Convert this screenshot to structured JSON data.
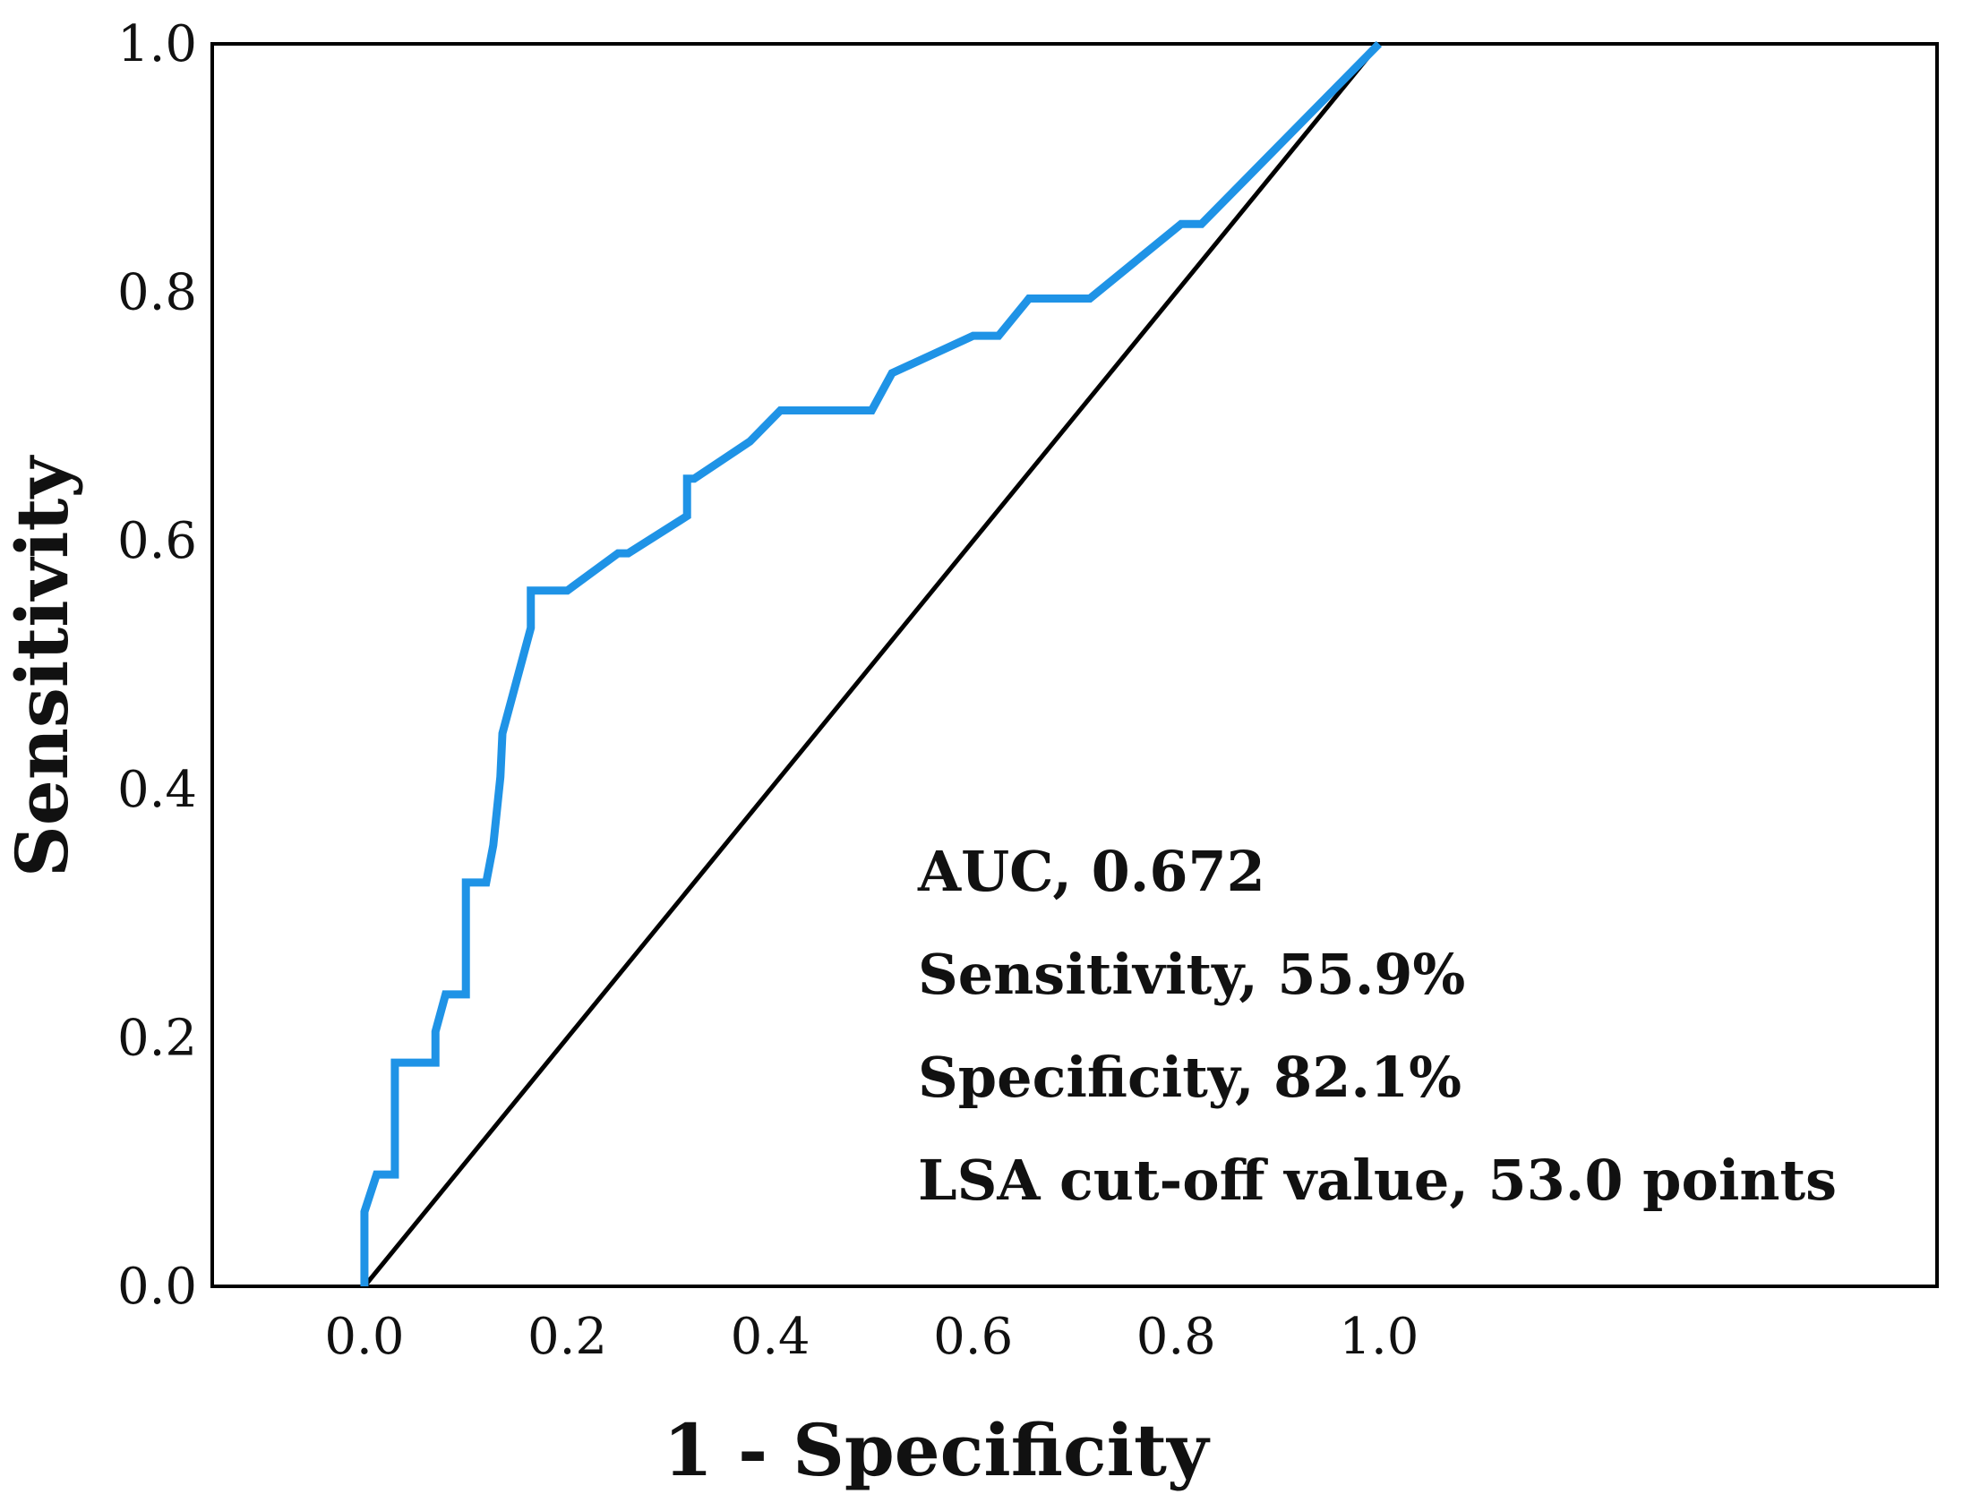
{
  "chart_data": {
    "type": "line",
    "title": "",
    "xlabel": "1 - Specificity",
    "ylabel": "Sensitivity",
    "xlim": [
      -0.15,
      1.55
    ],
    "ylim": [
      0.0,
      1.0
    ],
    "grid": false,
    "x_ticks": [
      "0.0",
      "0.2",
      "0.4",
      "0.6",
      "0.8",
      "1.0"
    ],
    "y_ticks": [
      "0.0",
      "0.2",
      "0.4",
      "0.6",
      "0.8",
      "1.0"
    ],
    "colors": {
      "roc": "#1f93e6",
      "reference": "#000000",
      "frame": "#000000"
    },
    "series": [
      {
        "name": "ROC curve",
        "x": [
          0.0,
          0.0,
          0.012,
          0.03,
          0.03,
          0.07,
          0.07,
          0.08,
          0.1,
          0.1,
          0.12,
          0.127,
          0.134,
          0.136,
          0.164,
          0.164,
          0.2,
          0.25,
          0.26,
          0.318,
          0.318,
          0.325,
          0.38,
          0.41,
          0.5,
          0.52,
          0.6,
          0.625,
          0.655,
          0.715,
          0.805,
          0.825,
          1.0
        ],
        "y": [
          0.0,
          0.06,
          0.09,
          0.09,
          0.18,
          0.18,
          0.205,
          0.235,
          0.235,
          0.325,
          0.325,
          0.355,
          0.41,
          0.445,
          0.53,
          0.56,
          0.56,
          0.59,
          0.59,
          0.62,
          0.65,
          0.65,
          0.68,
          0.705,
          0.705,
          0.735,
          0.765,
          0.765,
          0.795,
          0.795,
          0.855,
          0.855,
          1.0
        ]
      },
      {
        "name": "Reference line",
        "x": [
          0.0,
          1.0
        ],
        "y": [
          0.0,
          1.0
        ]
      }
    ],
    "annotations": [
      "AUC, 0.672",
      "Sensitivity, 55.9%",
      "Specificity, 82.1%",
      "LSA cut-off value, 53.0 points"
    ]
  }
}
